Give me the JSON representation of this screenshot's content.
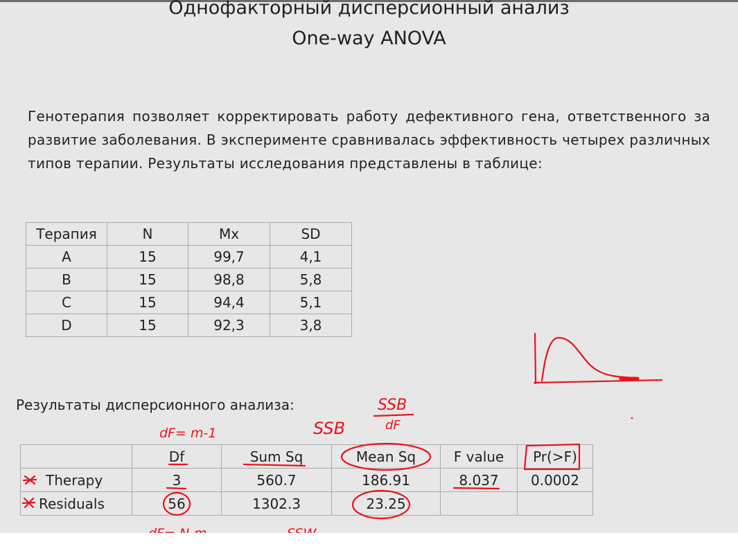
{
  "title": {
    "line1": "Однофакторный дисперсионный анализ",
    "line2": "One-way ANOVA"
  },
  "paragraph": "Генотерапия позволяет корректировать работу дефективного гена, ответственного за развитие заболевания. В эксперименте сравнивалась эффективность четырех различных типов терапии. Результаты исследования представлены в таблице:",
  "therapy_table": {
    "headers": [
      "Терапия",
      "N",
      "Mx",
      "SD"
    ],
    "rows": [
      [
        "A",
        "15",
        "99,7",
        "4,1"
      ],
      [
        "B",
        "15",
        "98,8",
        "5,8"
      ],
      [
        "C",
        "15",
        "94,4",
        "5,1"
      ],
      [
        "D",
        "15",
        "92,3",
        "3,8"
      ]
    ]
  },
  "results_heading": "Результаты дисперсионного анализа:",
  "anova_table": {
    "headers": [
      "",
      "Df",
      "Sum Sq",
      "Mean Sq",
      "F value",
      "Pr(>F)"
    ],
    "rows": [
      [
        "Therapy",
        "3",
        "560.7",
        "186.91",
        "8.037",
        "0.0002"
      ],
      [
        "Residuals",
        "56",
        "1302.3",
        "23.25",
        "",
        ""
      ]
    ]
  },
  "annotations": {
    "df_between": "dF= m-1",
    "ssb": "SSB",
    "ssb_frac_num": "SSB",
    "ssb_frac_den": "dF",
    "df_within": "dF= N-m",
    "ssw": "SSW",
    "ink_color": "#e8141b"
  }
}
